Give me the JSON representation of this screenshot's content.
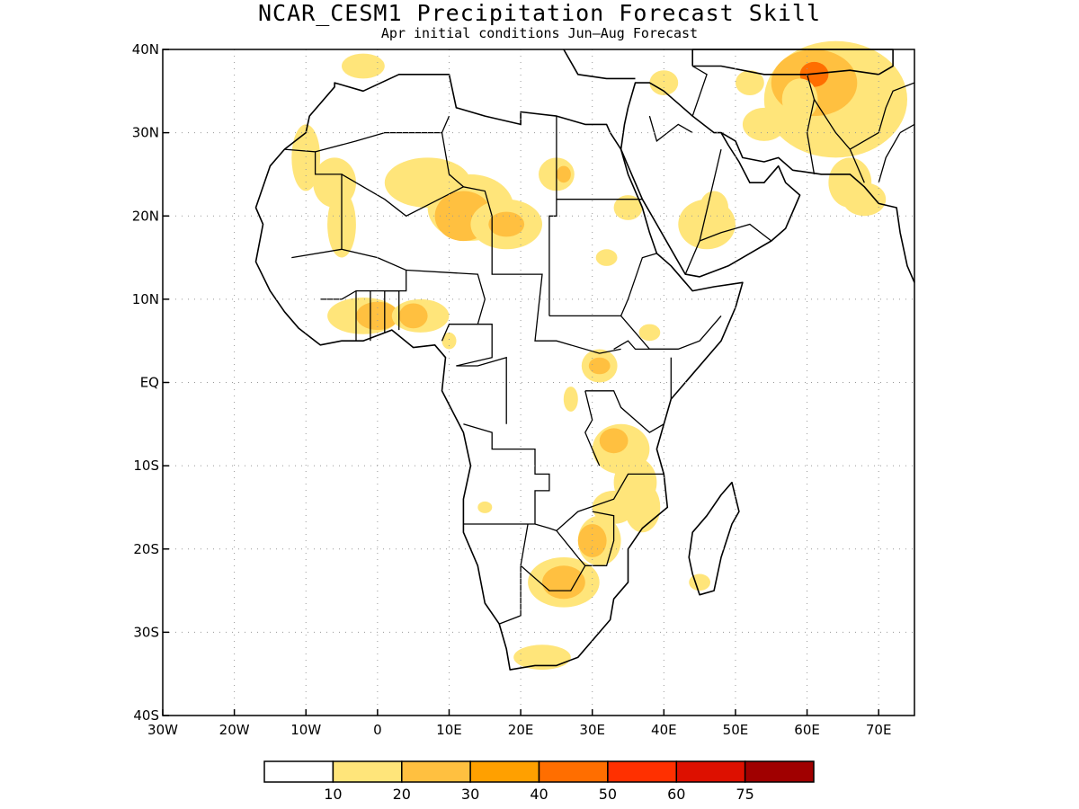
{
  "title": "NCAR_CESM1 Precipitation Forecast Skill",
  "subtitle": "Apr initial conditions  Jun–Aug Forecast",
  "map": {
    "lon_range": [
      -30,
      75
    ],
    "lat_range": [
      -40,
      40
    ],
    "gridlines": true,
    "y_ticks": [
      {
        "lat": 40,
        "label": "40N"
      },
      {
        "lat": 30,
        "label": "30N"
      },
      {
        "lat": 20,
        "label": "20N"
      },
      {
        "lat": 10,
        "label": "10N"
      },
      {
        "lat": 0,
        "label": "EQ"
      },
      {
        "lat": -10,
        "label": "10S"
      },
      {
        "lat": -20,
        "label": "20S"
      },
      {
        "lat": -30,
        "label": "30S"
      },
      {
        "lat": -40,
        "label": "40S"
      }
    ],
    "x_ticks": [
      {
        "lon": -30,
        "label": "30W"
      },
      {
        "lon": -20,
        "label": "20W"
      },
      {
        "lon": -10,
        "label": "10W"
      },
      {
        "lon": 0,
        "label": "0"
      },
      {
        "lon": 10,
        "label": "10E"
      },
      {
        "lon": 20,
        "label": "20E"
      },
      {
        "lon": 30,
        "label": "30E"
      },
      {
        "lon": 40,
        "label": "40E"
      },
      {
        "lon": 50,
        "label": "50E"
      },
      {
        "lon": 60,
        "label": "60E"
      },
      {
        "lon": 70,
        "label": "70E"
      }
    ],
    "colors": {
      "lvl1": "#ffe57a",
      "lvl2": "#ffc040",
      "lvl3": "#ffa000",
      "lvl4": "#ff6e00",
      "lvl5": "#ff3000"
    }
  },
  "colorbar": {
    "colors": [
      "#ffffff",
      "#ffe57a",
      "#ffc040",
      "#ffa000",
      "#ff6e00",
      "#ff3000",
      "#dd1000",
      "#a00000"
    ],
    "labels": [
      "10",
      "20",
      "30",
      "40",
      "50",
      "60",
      "75"
    ]
  }
}
